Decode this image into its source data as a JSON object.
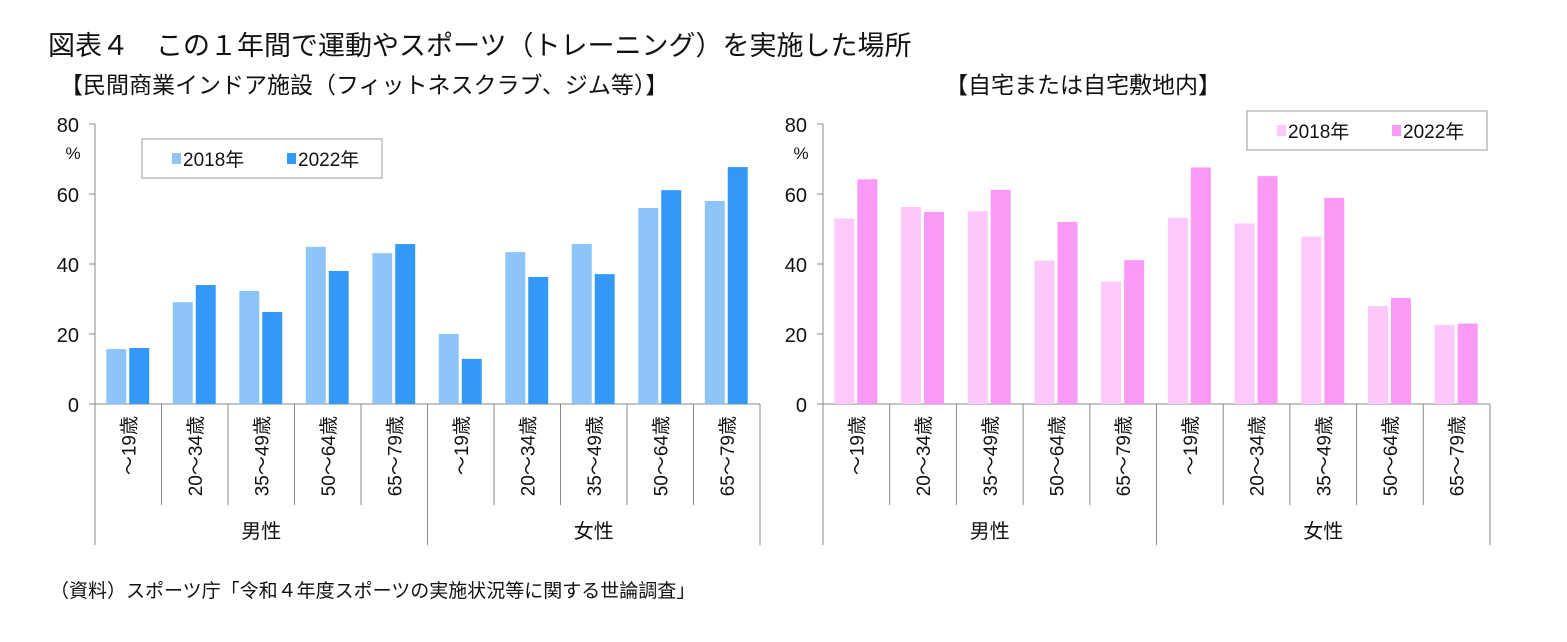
{
  "title": "図表４　この１年間で運動やスポーツ（トレーニング）を実施した場所",
  "source": "（資料）スポーツ庁「令和４年度スポーツの実施状況等に関する世論調査」",
  "chart_data": [
    {
      "type": "bar",
      "title": "【民間商業インドア施設（フィットネスクラブ、ジム等）】",
      "ylabel": "%",
      "ylim": [
        0,
        80
      ],
      "yticks": [
        0,
        20,
        40,
        60,
        80
      ],
      "grid": false,
      "legend": "top-left",
      "groups": [
        "男性",
        "女性"
      ],
      "categories": [
        "～19歳",
        "20～34歳",
        "35～49歳",
        "50～64歳",
        "65～79歳",
        "～19歳",
        "20～34歳",
        "35～49歳",
        "50～64歳",
        "65～79歳"
      ],
      "series": [
        {
          "name": "2018年",
          "color": "#8ec5f8",
          "values": [
            15.7,
            29.1,
            32.3,
            44.9,
            43.1,
            20.0,
            43.4,
            45.7,
            56.0,
            58.0
          ]
        },
        {
          "name": "2022年",
          "color": "#3399f8",
          "values": [
            16.0,
            34.0,
            26.3,
            38.0,
            45.7,
            12.9,
            36.3,
            37.1,
            61.1,
            67.7
          ]
        }
      ]
    },
    {
      "type": "bar",
      "title": "【自宅または自宅敷地内】",
      "ylabel": "%",
      "ylim": [
        0,
        80
      ],
      "yticks": [
        0,
        20,
        40,
        60,
        80
      ],
      "grid": false,
      "legend": "top-right",
      "groups": [
        "男性",
        "女性"
      ],
      "categories": [
        "～19歳",
        "20～34歳",
        "35～49歳",
        "50～64歳",
        "65～79歳",
        "～19歳",
        "20～34歳",
        "35～49歳",
        "50～64歳",
        "65～79歳"
      ],
      "series": [
        {
          "name": "2018年",
          "color": "#fdc9fb",
          "values": [
            53.0,
            56.3,
            55.1,
            41.0,
            35.0,
            53.2,
            51.6,
            47.8,
            28.0,
            22.6
          ]
        },
        {
          "name": "2022年",
          "color": "#fa99f6",
          "values": [
            64.2,
            54.9,
            61.2,
            52.0,
            41.1,
            67.6,
            65.1,
            58.9,
            30.3,
            23.0
          ]
        }
      ]
    }
  ]
}
